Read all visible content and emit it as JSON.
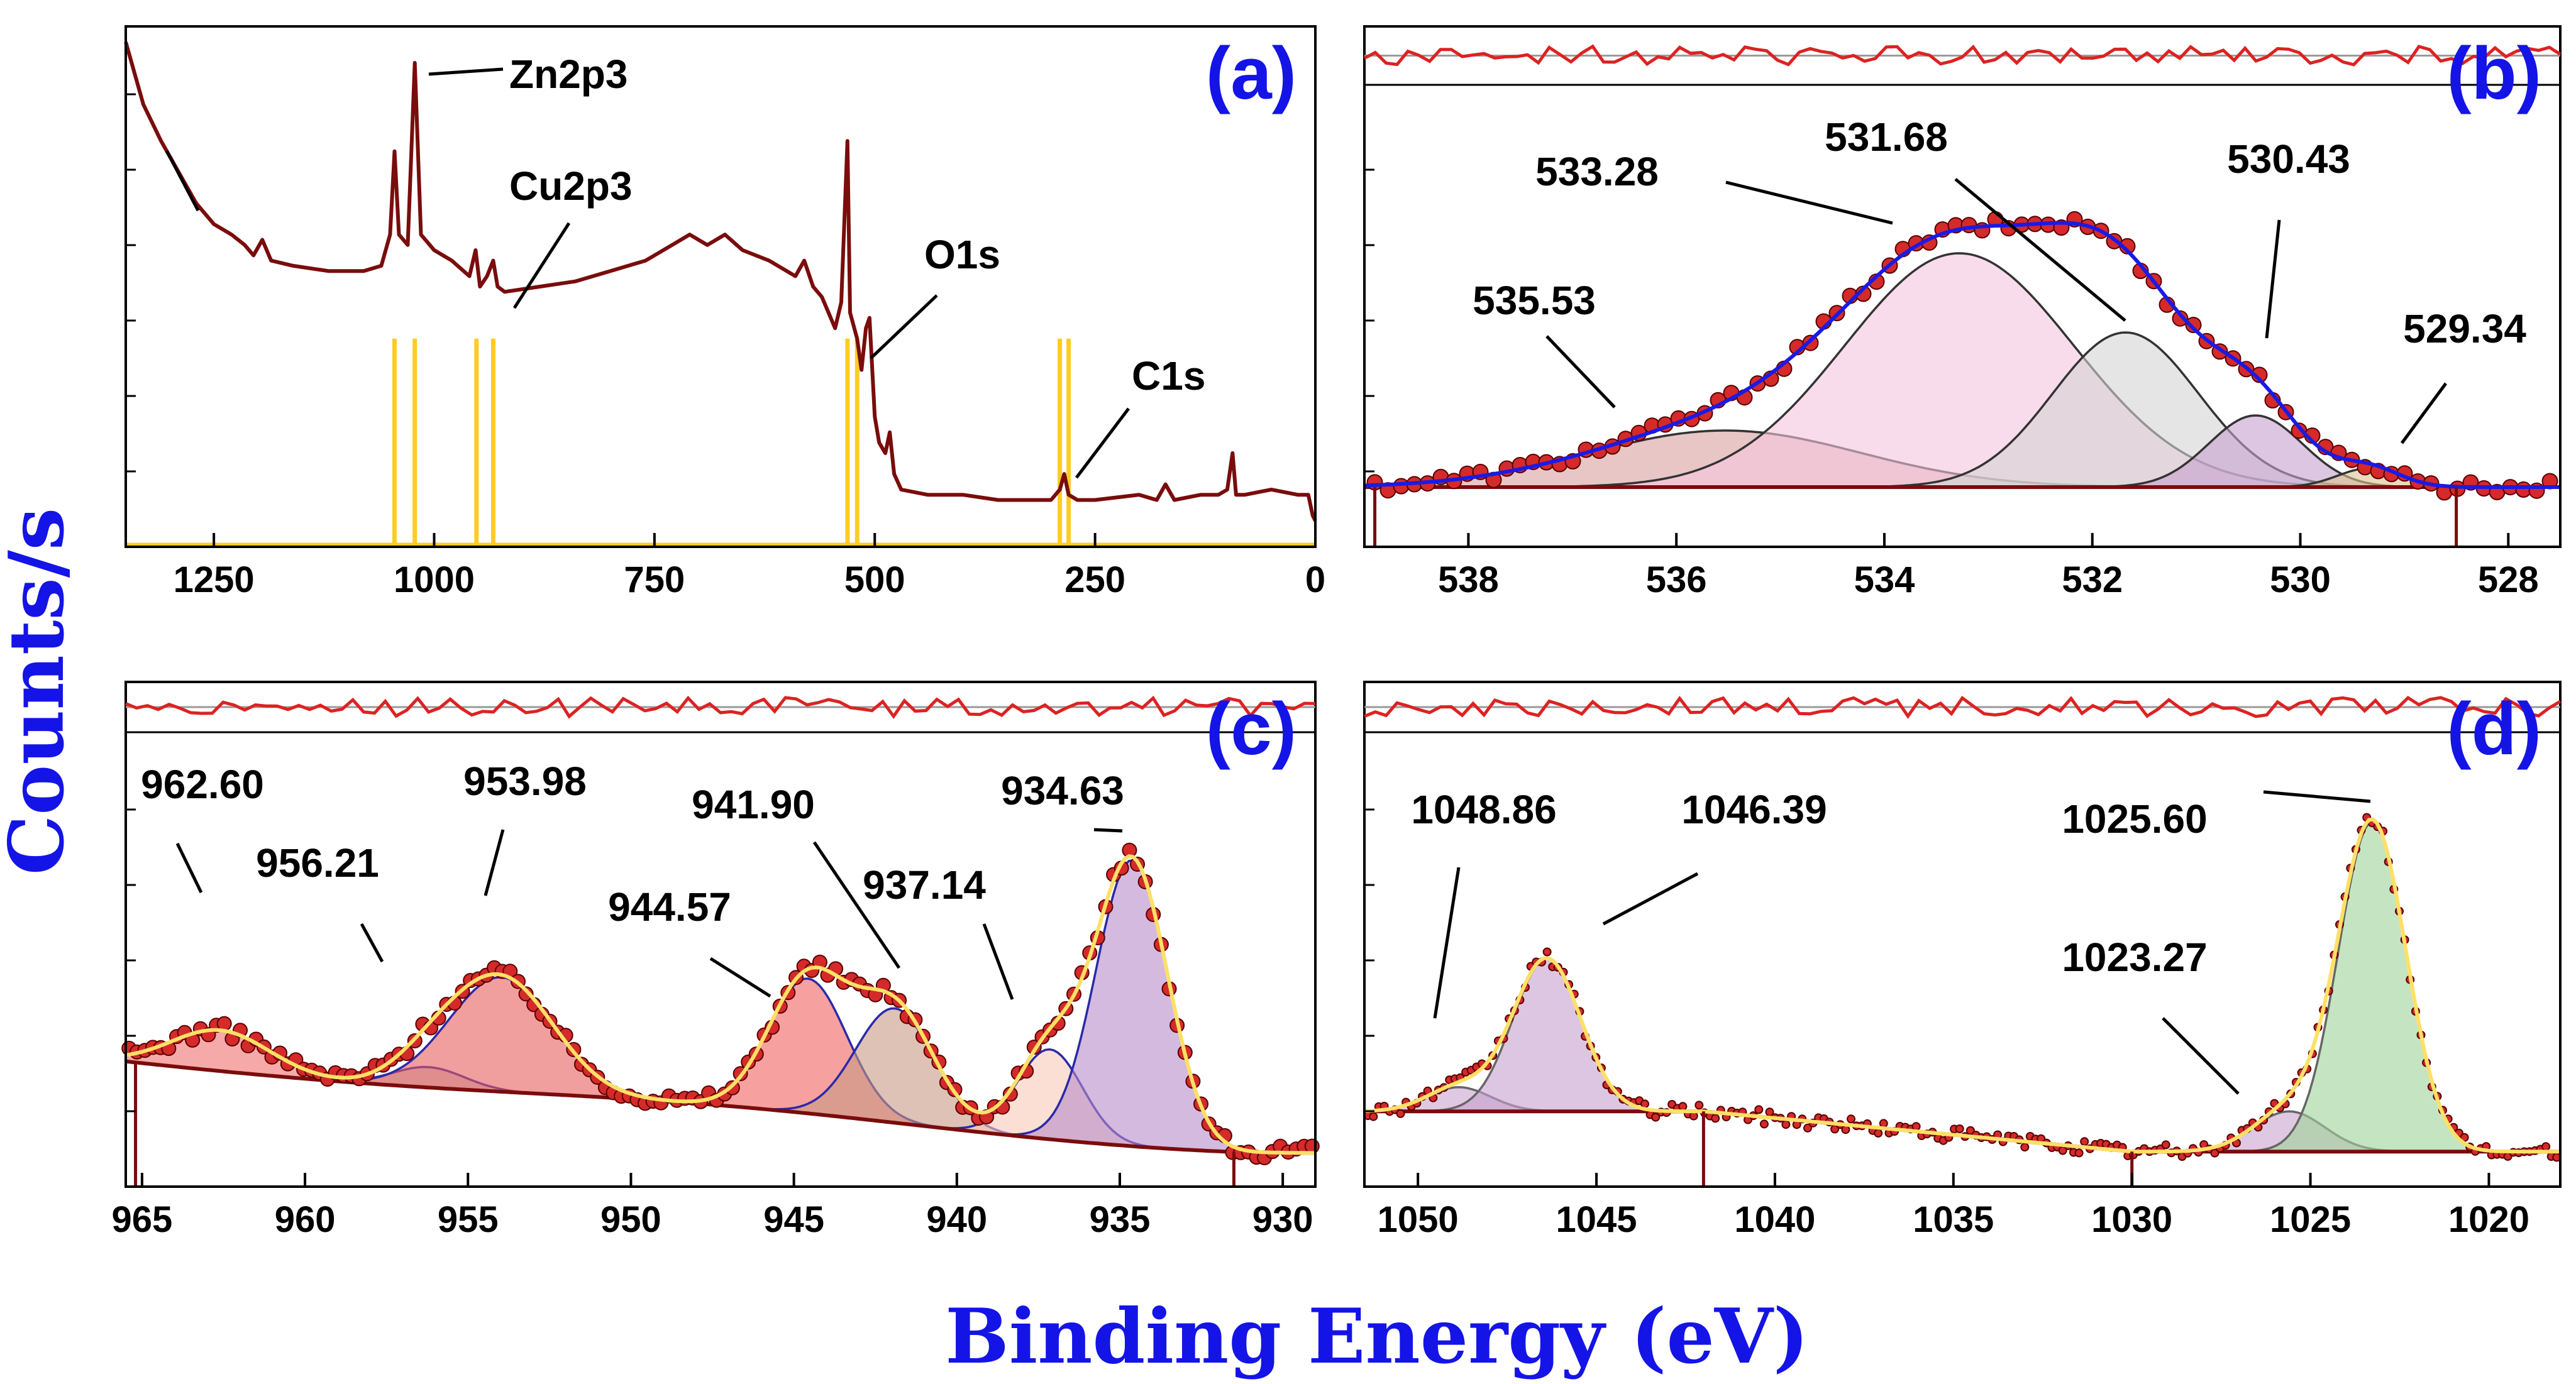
{
  "figure": {
    "ylabel": "Counts/s",
    "xlabel": "Binding Energy (eV)"
  },
  "colors": {
    "dark_red": "#7a0c0c",
    "residual_red": "#dd2222",
    "point_fill": "#d42a2a",
    "fit_blue": "#1a1ae6",
    "fit_yellow": "#ffe066",
    "label_blue": "#1414e6",
    "stick_yellow": "#ffcc22"
  },
  "chart_data": [
    {
      "panel": "(a)",
      "type": "line",
      "xlim": [
        1350,
        0
      ],
      "xticks": [
        "1250",
        "1000",
        "750",
        "500",
        "250",
        "0"
      ],
      "labels": [
        {
          "text": "Zn2p3",
          "x": 1022
        },
        {
          "text": "Cu2p3",
          "x": 933
        },
        {
          "text": "O1s",
          "x": 531
        },
        {
          "text": "C1s",
          "x": 285
        }
      ],
      "reference_lines_eV": [
        1045,
        1022,
        952,
        933,
        531,
        520,
        290,
        280
      ],
      "survey_points": [
        [
          1350,
          0.97
        ],
        [
          1330,
          0.85
        ],
        [
          1310,
          0.78
        ],
        [
          1290,
          0.72
        ],
        [
          1270,
          0.66
        ],
        [
          1250,
          0.62
        ],
        [
          1230,
          0.6
        ],
        [
          1215,
          0.58
        ],
        [
          1205,
          0.56
        ],
        [
          1195,
          0.59
        ],
        [
          1185,
          0.55
        ],
        [
          1160,
          0.54
        ],
        [
          1120,
          0.53
        ],
        [
          1080,
          0.53
        ],
        [
          1060,
          0.54
        ],
        [
          1050,
          0.6
        ],
        [
          1045,
          0.76
        ],
        [
          1040,
          0.6
        ],
        [
          1030,
          0.58
        ],
        [
          1022,
          0.93
        ],
        [
          1015,
          0.6
        ],
        [
          1000,
          0.57
        ],
        [
          980,
          0.55
        ],
        [
          960,
          0.52
        ],
        [
          953,
          0.57
        ],
        [
          948,
          0.5
        ],
        [
          940,
          0.52
        ],
        [
          933,
          0.55
        ],
        [
          928,
          0.5
        ],
        [
          920,
          0.49
        ],
        [
          880,
          0.5
        ],
        [
          840,
          0.51
        ],
        [
          800,
          0.53
        ],
        [
          760,
          0.55
        ],
        [
          730,
          0.58
        ],
        [
          710,
          0.6
        ],
        [
          690,
          0.58
        ],
        [
          670,
          0.6
        ],
        [
          650,
          0.57
        ],
        [
          620,
          0.55
        ],
        [
          590,
          0.52
        ],
        [
          580,
          0.55
        ],
        [
          570,
          0.5
        ],
        [
          560,
          0.48
        ],
        [
          545,
          0.42
        ],
        [
          538,
          0.47
        ],
        [
          531,
          0.78
        ],
        [
          528,
          0.45
        ],
        [
          520,
          0.4
        ],
        [
          515,
          0.34
        ],
        [
          510,
          0.42
        ],
        [
          506,
          0.44
        ],
        [
          500,
          0.25
        ],
        [
          495,
          0.2
        ],
        [
          488,
          0.18
        ],
        [
          483,
          0.22
        ],
        [
          478,
          0.14
        ],
        [
          470,
          0.11
        ],
        [
          440,
          0.1
        ],
        [
          400,
          0.1
        ],
        [
          360,
          0.09
        ],
        [
          330,
          0.09
        ],
        [
          300,
          0.09
        ],
        [
          290,
          0.11
        ],
        [
          285,
          0.14
        ],
        [
          280,
          0.1
        ],
        [
          270,
          0.09
        ],
        [
          250,
          0.09
        ],
        [
          200,
          0.1
        ],
        [
          180,
          0.09
        ],
        [
          170,
          0.12
        ],
        [
          160,
          0.09
        ],
        [
          130,
          0.1
        ],
        [
          110,
          0.1
        ],
        [
          100,
          0.11
        ],
        [
          94,
          0.18
        ],
        [
          90,
          0.1
        ],
        [
          80,
          0.1
        ],
        [
          50,
          0.11
        ],
        [
          20,
          0.1
        ],
        [
          8,
          0.1
        ],
        [
          3,
          0.06
        ],
        [
          0,
          0.05
        ]
      ]
    },
    {
      "panel": "(b)",
      "type": "scatter",
      "xlim": [
        539,
        527.5
      ],
      "xticks": [
        "538",
        "536",
        "534",
        "532",
        "530",
        "528"
      ],
      "labels": [
        {
          "text": "535.53",
          "x": 535.53
        },
        {
          "text": "533.28",
          "x": 533.28
        },
        {
          "text": "531.68",
          "x": 531.68
        },
        {
          "text": "530.43",
          "x": 530.43
        },
        {
          "text": "529.34",
          "x": 529.34
        }
      ],
      "components": [
        {
          "center": 535.53,
          "amplitude": 0.15,
          "sigma": 1.3,
          "fill": "#d9a0a0"
        },
        {
          "center": 533.28,
          "amplitude": 0.62,
          "sigma": 1.1,
          "fill": "#f5c4de"
        },
        {
          "center": 531.68,
          "amplitude": 0.41,
          "sigma": 0.7,
          "fill": "#d4d4d4"
        },
        {
          "center": 530.43,
          "amplitude": 0.19,
          "sigma": 0.45,
          "fill": "#c6a0cf"
        },
        {
          "center": 529.34,
          "amplitude": 0.05,
          "sigma": 0.3,
          "fill": "#e0c290"
        }
      ],
      "points_range": [
        538.9,
        527.6
      ],
      "points_count": 90,
      "fit_color": "#1a1ae6"
    },
    {
      "panel": "(c)",
      "type": "scatter",
      "xlim": [
        965.5,
        929
      ],
      "xticks": [
        "965",
        "960",
        "955",
        "950",
        "945",
        "940",
        "935",
        "930"
      ],
      "labels": [
        {
          "text": "962.60",
          "x": 962.6
        },
        {
          "text": "956.21",
          "x": 956.21
        },
        {
          "text": "953.98",
          "x": 953.98
        },
        {
          "text": "944.57",
          "x": 944.57
        },
        {
          "text": "941.90",
          "x": 941.9
        },
        {
          "text": "937.14",
          "x": 937.14
        },
        {
          "text": "934.63",
          "x": 934.63
        }
      ],
      "components": [
        {
          "center": 962.6,
          "amplitude": 0.1,
          "sigma": 1.5,
          "fill": "#f07070"
        },
        {
          "center": 956.21,
          "amplitude": 0.05,
          "sigma": 1.1,
          "fill": "#b8b8b8"
        },
        {
          "center": 953.98,
          "amplitude": 0.28,
          "sigma": 1.6,
          "fill": "#e85d5d"
        },
        {
          "center": 944.57,
          "amplitude": 0.33,
          "sigma": 1.2,
          "fill": "#f06060"
        },
        {
          "center": 941.9,
          "amplitude": 0.28,
          "sigma": 1.2,
          "fill": "#c89a84"
        },
        {
          "center": 937.14,
          "amplitude": 0.22,
          "sigma": 1.0,
          "fill": "#f8c8b8"
        },
        {
          "center": 934.63,
          "amplitude": 0.7,
          "sigma": 1.1,
          "fill": "#b88cc9"
        }
      ],
      "points_range": [
        965.4,
        929.1
      ],
      "points_count": 150,
      "fit_color": "#ffe066"
    },
    {
      "panel": "(d)",
      "type": "scatter",
      "xlim": [
        1051.5,
        1018
      ],
      "xticks": [
        "1050",
        "1045",
        "1040",
        "1035",
        "1030",
        "1025",
        "1020"
      ],
      "labels": [
        {
          "text": "1048.86",
          "x": 1048.86
        },
        {
          "text": "1046.39",
          "x": 1046.39
        },
        {
          "text": "1025.60",
          "x": 1025.6
        },
        {
          "text": "1023.27",
          "x": 1023.27
        }
      ],
      "components": [
        {
          "center": 1048.86,
          "amplitude": 0.06,
          "sigma": 0.9,
          "fill": "#c9a3cd"
        },
        {
          "center": 1046.39,
          "amplitude": 0.38,
          "sigma": 0.95,
          "fill": "#c6a0cf"
        },
        {
          "center": 1025.6,
          "amplitude": 0.1,
          "sigma": 1.0,
          "fill": "#c9a3cd"
        },
        {
          "center": 1023.27,
          "amplitude": 0.82,
          "sigma": 0.95,
          "fill": "#9fd49a"
        }
      ],
      "points_range": [
        1051.4,
        1018.1
      ],
      "points_count": 220,
      "fit_color": "#ffe066"
    }
  ]
}
